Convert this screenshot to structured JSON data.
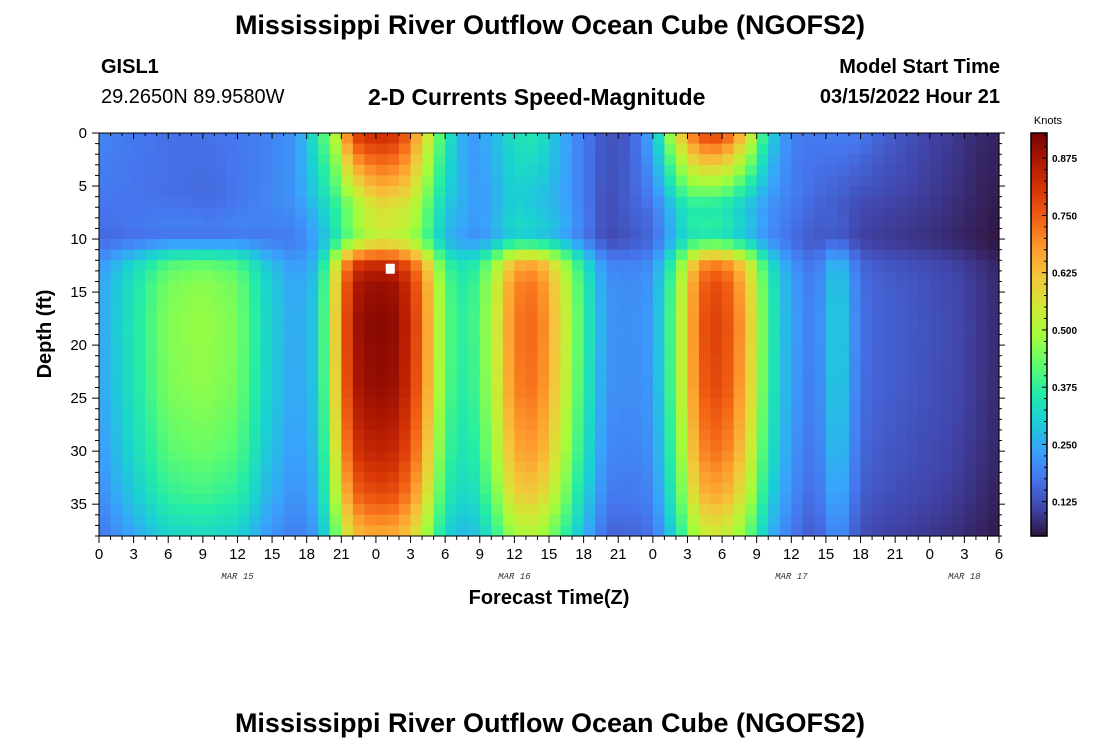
{
  "header": {
    "main_title": "Mississippi River Outflow Ocean Cube (NGOFS2)",
    "station_id": "GISL1",
    "station_coords": "29.2650N  89.9580W",
    "plot_title": "2-D Currents Speed-Magnitude",
    "start_label": "Model Start Time",
    "start_value": "03/15/2022 Hour 21"
  },
  "footer": {
    "repeat_title": "Mississippi River Outflow Ocean Cube (NGOFS2)"
  },
  "chart_data": {
    "type": "heatmap",
    "title": "2-D Currents Speed-Magnitude",
    "xlabel": "Forecast Time(Z)",
    "ylabel": "Depth (ft)",
    "x_unit": "hours since 03/15/2022 00Z",
    "x_ticks": [
      0,
      3,
      6,
      9,
      12,
      15,
      18,
      21,
      24,
      27,
      30,
      33,
      36,
      39,
      42,
      45,
      48,
      51,
      54,
      57,
      60,
      63,
      66,
      69,
      72,
      75,
      78
    ],
    "x_tick_labels": [
      "0",
      "3",
      "6",
      "9",
      "12",
      "15",
      "18",
      "21",
      "0",
      "3",
      "6",
      "9",
      "12",
      "15",
      "18",
      "21",
      "0",
      "3",
      "6",
      "9",
      "12",
      "15",
      "18",
      "21",
      "0",
      "3",
      "6"
    ],
    "date_labels": [
      {
        "text": "MAR 15",
        "x": 12
      },
      {
        "text": "MAR 16",
        "x": 36
      },
      {
        "text": "MAR 17",
        "x": 60
      },
      {
        "text": "MAR 18",
        "x": 75
      }
    ],
    "xlim": [
      0,
      78
    ],
    "y_ticks": [
      0,
      5,
      10,
      15,
      20,
      25,
      30,
      35
    ],
    "ylim": [
      0,
      38
    ],
    "y_inverted": true,
    "colorbar": {
      "label": "Knots",
      "ticks": [
        0.125,
        0.25,
        0.375,
        0.5,
        0.625,
        0.75,
        0.875
      ],
      "tick_labels": [
        "0.125",
        "0.250",
        "0.375",
        "0.500",
        "0.625",
        "0.750",
        "0.875"
      ],
      "range": [
        0.05,
        0.93
      ],
      "colormap": [
        "#30123b",
        "#4145ab",
        "#4675ed",
        "#39a2fc",
        "#1bcfd4",
        "#24eca6",
        "#61fc6c",
        "#a4fc3b",
        "#d1e834",
        "#f3c63a",
        "#fe9b2d",
        "#f36315",
        "#d93806",
        "#b11901",
        "#7a0403"
      ]
    },
    "marker": {
      "x": 25.2,
      "y": 12.8
    },
    "time_profiles": [
      {
        "t": 0,
        "s": 0.2,
        "b": 0.24
      },
      {
        "t": 3,
        "s": 0.18,
        "b": 0.35
      },
      {
        "t": 6,
        "s": 0.17,
        "b": 0.46
      },
      {
        "t": 9,
        "s": 0.17,
        "b": 0.48
      },
      {
        "t": 12,
        "s": 0.18,
        "b": 0.45
      },
      {
        "t": 14.5,
        "s": 0.19,
        "b": 0.32
      },
      {
        "t": 17,
        "s": 0.22,
        "b": 0.24
      },
      {
        "t": 19,
        "s": 0.36,
        "b": 0.3
      },
      {
        "t": 20.5,
        "s": 0.52,
        "b": 0.6
      },
      {
        "t": 22,
        "s": 0.8,
        "b": 0.88
      },
      {
        "t": 24,
        "s": 0.84,
        "b": 0.92
      },
      {
        "t": 26,
        "s": 0.82,
        "b": 0.9
      },
      {
        "t": 28,
        "s": 0.62,
        "b": 0.74
      },
      {
        "t": 30,
        "s": 0.36,
        "b": 0.42
      },
      {
        "t": 32,
        "s": 0.22,
        "b": 0.36
      },
      {
        "t": 34,
        "s": 0.26,
        "b": 0.5
      },
      {
        "t": 36,
        "s": 0.34,
        "b": 0.72
      },
      {
        "t": 38,
        "s": 0.35,
        "b": 0.74
      },
      {
        "t": 40,
        "s": 0.26,
        "b": 0.58
      },
      {
        "t": 42,
        "s": 0.18,
        "b": 0.38
      },
      {
        "t": 44,
        "s": 0.13,
        "b": 0.22
      },
      {
        "t": 46,
        "s": 0.14,
        "b": 0.21
      },
      {
        "t": 48,
        "s": 0.26,
        "b": 0.23
      },
      {
        "t": 50,
        "s": 0.56,
        "b": 0.45
      },
      {
        "t": 52,
        "s": 0.78,
        "b": 0.76
      },
      {
        "t": 54,
        "s": 0.8,
        "b": 0.8
      },
      {
        "t": 56,
        "s": 0.62,
        "b": 0.66
      },
      {
        "t": 58,
        "s": 0.32,
        "b": 0.38
      },
      {
        "t": 60,
        "s": 0.19,
        "b": 0.24
      },
      {
        "t": 62,
        "s": 0.18,
        "b": 0.18
      },
      {
        "t": 64,
        "s": 0.19,
        "b": 0.32
      },
      {
        "t": 66,
        "s": 0.18,
        "b": 0.17
      },
      {
        "t": 68,
        "s": 0.15,
        "b": 0.15
      },
      {
        "t": 70,
        "s": 0.13,
        "b": 0.14
      },
      {
        "t": 72,
        "s": 0.11,
        "b": 0.13
      },
      {
        "t": 74,
        "s": 0.1,
        "b": 0.12
      },
      {
        "t": 76,
        "s": 0.08,
        "b": 0.1
      },
      {
        "t": 78,
        "s": 0.07,
        "b": 0.08
      }
    ],
    "depth_profile": [
      {
        "d": 0,
        "w": 1.0
      },
      {
        "d": 2,
        "w": 0.85
      },
      {
        "d": 4,
        "w": 0.35
      },
      {
        "d": 6,
        "w": 0.1
      },
      {
        "d": 8,
        "w": 0.05
      },
      {
        "d": 10,
        "w": 0.45
      },
      {
        "d": 12,
        "w": 0.85
      },
      {
        "d": 14,
        "w": 0.97
      },
      {
        "d": 18,
        "w": 1.0
      },
      {
        "d": 24,
        "w": 0.98
      },
      {
        "d": 30,
        "w": 0.9
      },
      {
        "d": 34,
        "w": 0.8
      },
      {
        "d": 38,
        "w": 0.62
      }
    ],
    "mid_depth_minimum": [
      {
        "t": 0,
        "m": 0.18
      },
      {
        "t": 10,
        "m": 0.16
      },
      {
        "t": 17,
        "m": 0.22
      },
      {
        "t": 20,
        "m": 0.34
      },
      {
        "t": 24,
        "m": 0.58
      },
      {
        "t": 27,
        "m": 0.55
      },
      {
        "t": 30,
        "m": 0.3
      },
      {
        "t": 33,
        "m": 0.22
      },
      {
        "t": 36,
        "m": 0.3
      },
      {
        "t": 40,
        "m": 0.25
      },
      {
        "t": 44,
        "m": 0.12
      },
      {
        "t": 48,
        "m": 0.18
      },
      {
        "t": 51,
        "m": 0.36
      },
      {
        "t": 54,
        "m": 0.34
      },
      {
        "t": 58,
        "m": 0.22
      },
      {
        "t": 62,
        "m": 0.16
      },
      {
        "t": 66,
        "m": 0.12
      },
      {
        "t": 72,
        "m": 0.1
      },
      {
        "t": 78,
        "m": 0.06
      }
    ]
  }
}
